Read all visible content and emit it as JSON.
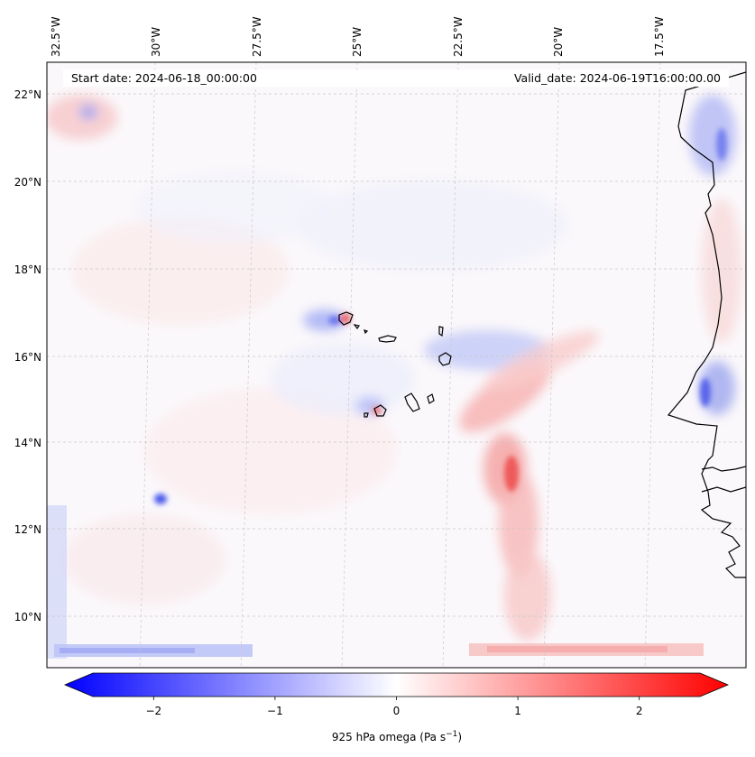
{
  "map": {
    "start_date": "Start date: 2024-06-18_00:00:00",
    "valid_date": "Valid_date: 2024-06-19T16:00:00.00",
    "lon_ticks": [
      "32.5°W",
      "30°W",
      "27.5°W",
      "25°W",
      "22.5°W",
      "20°W",
      "17.5°W"
    ],
    "lat_ticks": [
      "22°N",
      "20°N",
      "18°N",
      "16°N",
      "14°N",
      "12°N",
      "10°N"
    ],
    "variable": "925 hPa omega",
    "units": "Pa s",
    "units_exponent": "−1"
  },
  "colorbar": {
    "min": -2.7,
    "max": 2.7,
    "ticks": [
      -2,
      -1,
      0,
      1,
      2
    ],
    "tick_labels": [
      "−2",
      "−1",
      "0",
      "1",
      "2"
    ],
    "colormap": "bwr",
    "low_color": "#0000ff",
    "mid_color": "#ffffff",
    "high_color": "#ff0000"
  },
  "colors": {
    "coastline": "#000000",
    "gridline": "#c8c8c8"
  }
}
